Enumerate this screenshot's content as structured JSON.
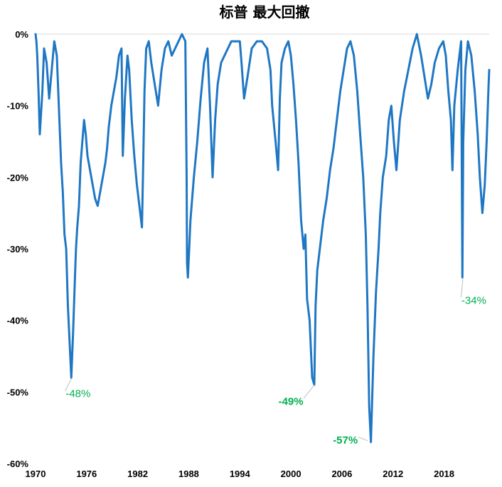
{
  "chart_data": {
    "type": "line",
    "title": "标普 最大回撤",
    "xlabel": "",
    "ylabel": "",
    "xlim": [
      1970,
      2023.3
    ],
    "ylim": [
      -60,
      0
    ],
    "y_ticks": [
      {
        "value": 0,
        "label": "0%"
      },
      {
        "value": -10,
        "label": "-10%"
      },
      {
        "value": -20,
        "label": "-20%"
      },
      {
        "value": -30,
        "label": "-30%"
      },
      {
        "value": -40,
        "label": "-40%"
      },
      {
        "value": -50,
        "label": "-50%"
      },
      {
        "value": -60,
        "label": "-60%"
      }
    ],
    "x_ticks": [
      {
        "value": 1970,
        "label": "1970"
      },
      {
        "value": 1976,
        "label": "1976"
      },
      {
        "value": 1982,
        "label": "1982"
      },
      {
        "value": 1988,
        "label": "1988"
      },
      {
        "value": 1994,
        "label": "1994"
      },
      {
        "value": 2000,
        "label": "2000"
      },
      {
        "value": 2006,
        "label": "2006"
      },
      {
        "value": 2012,
        "label": "2012"
      },
      {
        "value": 2018,
        "label": "2018"
      }
    ],
    "grid": false,
    "series": [
      {
        "color": "#1f77c4",
        "x": [
          1970.0,
          1970.1,
          1970.2,
          1970.35,
          1970.5,
          1970.8,
          1971.0,
          1971.3,
          1971.6,
          1971.9,
          1972.2,
          1972.5,
          1972.8,
          1973.0,
          1973.2,
          1973.4,
          1973.6,
          1973.8,
          1974.0,
          1974.2,
          1974.4,
          1974.6,
          1974.75,
          1974.9,
          1975.1,
          1975.3,
          1975.5,
          1975.7,
          1975.9,
          1976.1,
          1976.4,
          1976.7,
          1977.0,
          1977.3,
          1977.6,
          1977.9,
          1978.2,
          1978.4,
          1978.6,
          1978.9,
          1979.2,
          1979.5,
          1979.8,
          1980.1,
          1980.25,
          1980.5,
          1980.8,
          1981.0,
          1981.3,
          1981.6,
          1981.9,
          1982.2,
          1982.5,
          1982.65,
          1982.8,
          1983.0,
          1983.3,
          1983.6,
          1984.0,
          1984.4,
          1984.8,
          1985.2,
          1985.6,
          1986.0,
          1986.4,
          1986.8,
          1987.2,
          1987.6,
          1987.75,
          1987.8,
          1987.9,
          1988.2,
          1988.6,
          1989.0,
          1989.4,
          1989.8,
          1990.2,
          1990.5,
          1990.8,
          1991.1,
          1991.4,
          1991.8,
          1992.2,
          1992.6,
          1993.0,
          1993.5,
          1994.0,
          1994.2,
          1994.5,
          1994.9,
          1995.4,
          1996.0,
          1996.6,
          1997.2,
          1997.6,
          1997.8,
          1998.2,
          1998.5,
          1998.7,
          1998.9,
          1999.3,
          1999.7,
          2000.0,
          2000.3,
          2000.6,
          2000.9,
          2001.2,
          2001.5,
          2001.7,
          2001.9,
          2002.2,
          2002.5,
          2002.75,
          2002.9,
          2003.1,
          2003.4,
          2003.8,
          2004.2,
          2004.6,
          2005.0,
          2005.4,
          2005.8,
          2006.2,
          2006.6,
          2007.0,
          2007.4,
          2007.8,
          2008.2,
          2008.5,
          2008.8,
          2009.0,
          2009.2,
          2009.4,
          2009.7,
          2010.0,
          2010.3,
          2010.5,
          2010.8,
          2011.2,
          2011.5,
          2011.8,
          2012.1,
          2012.4,
          2012.8,
          2013.3,
          2013.8,
          2014.3,
          2014.8,
          2015.3,
          2015.7,
          2016.1,
          2016.5,
          2016.9,
          2017.4,
          2017.9,
          2018.2,
          2018.5,
          2018.8,
          2018.98,
          2019.2,
          2019.6,
          2020.0,
          2020.15,
          2020.25,
          2020.5,
          2020.8,
          2021.2,
          2021.6,
          2021.95,
          2022.2,
          2022.5,
          2022.78,
          2023.0,
          2023.2,
          2023.3
        ],
        "y": [
          0,
          -1,
          -3,
          -8,
          -14,
          -8,
          -2,
          -4,
          -9,
          -5,
          -1,
          -3,
          -12,
          -18,
          -22,
          -28,
          -30,
          -38,
          -43,
          -48,
          -42,
          -35,
          -30,
          -27,
          -24,
          -18,
          -15,
          -12,
          -14,
          -17,
          -19,
          -21,
          -23,
          -24,
          -22,
          -20,
          -18,
          -16,
          -13,
          -10,
          -8,
          -6,
          -3,
          -2,
          -17,
          -9,
          -3,
          -5,
          -12,
          -17,
          -21,
          -24,
          -27,
          -18,
          -8,
          -2,
          -1,
          -4,
          -7,
          -10,
          -5,
          -2,
          -1,
          -3,
          -2,
          -1,
          0,
          -1,
          -20,
          -32,
          -34,
          -26,
          -20,
          -15,
          -9,
          -4,
          -2,
          -10,
          -20,
          -12,
          -7,
          -4,
          -3,
          -2,
          -1,
          -1,
          -1,
          -4,
          -9,
          -6,
          -2,
          -1,
          -1,
          -2,
          -5,
          -10,
          -15,
          -19,
          -9,
          -4,
          -2,
          -1,
          -3,
          -7,
          -12,
          -18,
          -26,
          -30,
          -28,
          -37,
          -40,
          -48,
          -49,
          -38,
          -33,
          -30,
          -26,
          -23,
          -19,
          -16,
          -12,
          -8,
          -5,
          -2,
          -1,
          -3,
          -8,
          -15,
          -20,
          -28,
          -38,
          -52,
          -57,
          -45,
          -36,
          -30,
          -25,
          -20,
          -17,
          -12,
          -10,
          -15,
          -19,
          -12,
          -8,
          -5,
          -2,
          0,
          -3,
          -6,
          -9,
          -7,
          -4,
          -2,
          -1,
          -3,
          -8,
          -12,
          -19,
          -10,
          -5,
          -1,
          -34,
          -15,
          -5,
          -1,
          -3,
          -8,
          -14,
          -20,
          -25,
          -21,
          -15,
          -8,
          -5
        ]
      }
    ],
    "annotations": [
      {
        "text": "-48%",
        "x": 1975.0,
        "y": -50.2,
        "point_x": 1974.2,
        "point_y": -48.2,
        "bold": false
      },
      {
        "text": "-49%",
        "x": 2000.0,
        "y": -51.3,
        "point_x": 2002.75,
        "point_y": -49.0,
        "bold": true
      },
      {
        "text": "-57%",
        "x": 2006.4,
        "y": -56.7,
        "point_x": 2009.0,
        "point_y": -56.8,
        "bold": true
      },
      {
        "text": "-34%",
        "x": 2021.5,
        "y": -37.2,
        "point_x": 2020.2,
        "point_y": -34.2,
        "bold": false
      }
    ]
  }
}
